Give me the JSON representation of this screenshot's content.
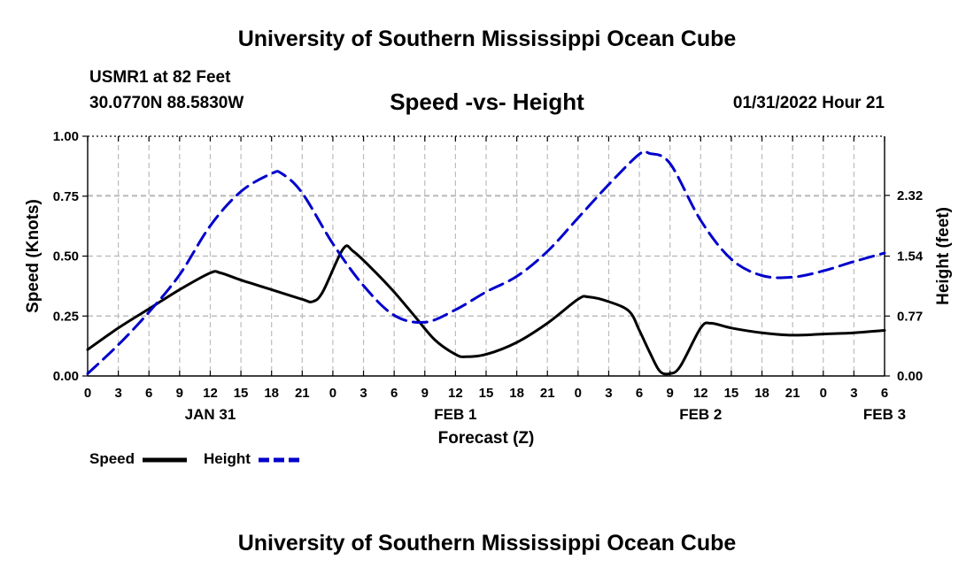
{
  "header": {
    "title": "University of Southern Mississippi Ocean Cube",
    "station": "USMR1 at 82 Feet",
    "coords": "30.0770N  88.5830W",
    "subtitle": "Speed -vs- Height",
    "datetime": "01/31/2022 Hour 21",
    "footer_title": "University of Southern Mississippi Ocean Cube"
  },
  "legend": {
    "speed_label": "Speed",
    "height_label": "Height"
  },
  "colors": {
    "speed": "#000000",
    "height": "#0000cc",
    "grid": "#bbbbbb"
  },
  "chart_data": {
    "type": "line",
    "title": "Speed -vs- Height",
    "xlabel": "Forecast (Z)",
    "ylabel": "Speed (Knots)",
    "ylabel_right": "Height (feet)",
    "x_hours_range": [
      0,
      78
    ],
    "ylim": [
      0,
      1
    ],
    "ylim_right": [
      0,
      3.08
    ],
    "yticks_left": [
      "0.00",
      "0.25",
      "0.50",
      "0.75",
      "1.00"
    ],
    "yticks_left_values": [
      0,
      0.25,
      0.5,
      0.75,
      1.0
    ],
    "yticks_right": [
      "0.00",
      "0.77",
      "1.54",
      "2.32"
    ],
    "yticks_right_values": [
      0,
      0.77,
      1.54,
      2.32
    ],
    "xtick_labels": [
      "0",
      "3",
      "6",
      "9",
      "12",
      "15",
      "18",
      "21",
      "0",
      "3",
      "6",
      "9",
      "12",
      "15",
      "18",
      "21",
      "0",
      "3",
      "6",
      "9",
      "12",
      "15",
      "18",
      "21",
      "0",
      "3",
      "6"
    ],
    "date_labels": [
      {
        "label": "JAN 31",
        "hour": 12
      },
      {
        "label": "FEB 1",
        "hour": 36
      },
      {
        "label": "FEB 2",
        "hour": 60
      },
      {
        "label": "FEB 3",
        "hour": 78
      }
    ],
    "grid": true,
    "series": [
      {
        "name": "Speed",
        "axis": "left",
        "style": "solid",
        "x": [
          0,
          3,
          6,
          9,
          12,
          13,
          15,
          18,
          21,
          22,
          23,
          25,
          26,
          28,
          30,
          32,
          34,
          36,
          37,
          39,
          42,
          45,
          48,
          49,
          51,
          53,
          54,
          55,
          56,
          57,
          58,
          60,
          61,
          63,
          66,
          69,
          72,
          75,
          78
        ],
        "y": [
          0.11,
          0.2,
          0.28,
          0.36,
          0.43,
          0.43,
          0.4,
          0.36,
          0.32,
          0.31,
          0.35,
          0.53,
          0.52,
          0.44,
          0.35,
          0.25,
          0.15,
          0.09,
          0.08,
          0.09,
          0.14,
          0.22,
          0.32,
          0.33,
          0.31,
          0.27,
          0.19,
          0.1,
          0.02,
          0.01,
          0.04,
          0.2,
          0.22,
          0.2,
          0.18,
          0.17,
          0.175,
          0.18,
          0.19
        ]
      },
      {
        "name": "Height",
        "axis": "right",
        "style": "dashed",
        "x": [
          0,
          3,
          6,
          9,
          12,
          15,
          18,
          19,
          21,
          24,
          27,
          30,
          33,
          36,
          39,
          42,
          45,
          48,
          51,
          54,
          55,
          57,
          60,
          63,
          66,
          69,
          72,
          75,
          78
        ],
        "y": [
          0.03,
          0.4,
          0.82,
          1.3,
          1.93,
          2.37,
          2.6,
          2.6,
          2.35,
          1.7,
          1.16,
          0.78,
          0.69,
          0.85,
          1.08,
          1.28,
          1.6,
          2.03,
          2.46,
          2.85,
          2.86,
          2.73,
          2.0,
          1.5,
          1.29,
          1.27,
          1.35,
          1.47,
          1.58
        ]
      }
    ]
  }
}
